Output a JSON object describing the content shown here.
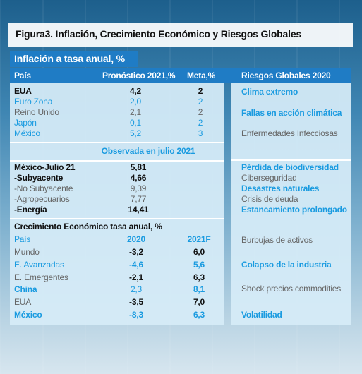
{
  "title": "Figura3. Inflación, Crecimiento Económico y Riesgos Globales",
  "inflation": {
    "title": "Inflación a tasa anual, %",
    "header": [
      "País",
      "Pronóstico 2021,%",
      "Meta,%"
    ],
    "rows": [
      [
        "EUA",
        "4,2",
        "2"
      ],
      [
        "Euro Zona",
        "2,0",
        "2"
      ],
      [
        "Reino Unido",
        "2,1",
        "2"
      ],
      [
        "Japón",
        "0,1",
        "2"
      ],
      [
        "México",
        "5,2",
        "3"
      ]
    ],
    "observed_title": "Observada en julio 2021",
    "observed_rows": [
      [
        "México-Julio 21",
        "5,81"
      ],
      [
        "-Subyacente",
        "4,66"
      ],
      [
        "-No Subyacente",
        "9,39"
      ],
      [
        "-Agropecuarios",
        "7,77"
      ],
      [
        "-Energía",
        "14,41"
      ]
    ]
  },
  "growth": {
    "title": "Crecimiento Económico tasa anual, %",
    "header": [
      "País",
      "2020",
      "2021F"
    ],
    "rows": [
      [
        "Mundo",
        "-3,2",
        "6,0"
      ],
      [
        "E. Avanzadas",
        "-4,6",
        "5,6"
      ],
      [
        "E. Emergentes",
        "-2,1",
        "6,3"
      ],
      [
        "China",
        "2,3",
        "8,1"
      ],
      [
        "EUA",
        "-3,5",
        "7,0"
      ],
      [
        "México",
        "-8,3",
        "6,3"
      ]
    ]
  },
  "risks": {
    "title": "Riesgos Globales 2020",
    "items": [
      "Clima extremo",
      "Fallas en acción climática",
      "Enfermedades Infecciosas",
      "Pérdida de biodiversidad",
      "Ciberseguridad",
      "Desastres naturales",
      "Crisis de deuda",
      "Estancamiento prolongado",
      "Burbujas de activos",
      "Colapso de la industria",
      "Shock precios commodities",
      "Volatilidad"
    ]
  }
}
